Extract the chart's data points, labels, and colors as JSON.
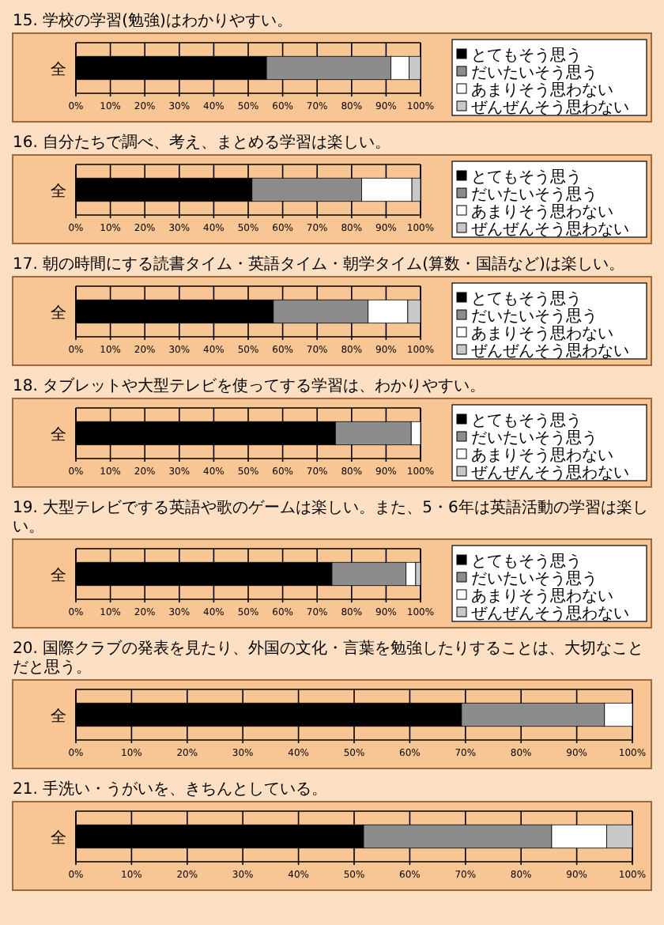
{
  "chart_data": [
    {
      "type": "bar",
      "title": "15. 学校の学習(勉強)はわかりやすい。",
      "orientation": "horizontal",
      "stacked": true,
      "categories": [
        "全"
      ],
      "xlim": [
        0,
        100
      ],
      "xticks": [
        {
          "value": 0,
          "label": "0%"
        },
        {
          "value": 10,
          "label": "10%"
        },
        {
          "value": 20,
          "label": "20%"
        },
        {
          "value": 30,
          "label": "30%"
        },
        {
          "value": 40,
          "label": "40%"
        },
        {
          "value": 50,
          "label": "50%"
        },
        {
          "value": 60,
          "label": "60%"
        },
        {
          "value": 70,
          "label": "70%"
        },
        {
          "value": 80,
          "label": "80%"
        },
        {
          "value": 90,
          "label": "90%"
        },
        {
          "value": 100,
          "label": "100%"
        }
      ],
      "grid": "x",
      "legend": "right",
      "series": [
        {
          "name": "とてもそう思う",
          "color": "#000000",
          "values": [
            55.3
          ]
        },
        {
          "name": "だいたいそう思う",
          "color": "#8c8c8c",
          "values": [
            36.1
          ]
        },
        {
          "name": "あまりそう思わない",
          "color": "#ffffff",
          "values": [
            5.3
          ]
        },
        {
          "name": "ぜんぜんそう思わない",
          "color": "#c8c8c8",
          "values": [
            3.3
          ]
        }
      ]
    },
    {
      "type": "bar",
      "title": "16. 自分たちで調べ、考え、まとめる学習は楽しい。",
      "orientation": "horizontal",
      "stacked": true,
      "categories": [
        "全"
      ],
      "xlim": [
        0,
        100
      ],
      "xticks": [
        {
          "value": 0,
          "label": "0%"
        },
        {
          "value": 10,
          "label": "10%"
        },
        {
          "value": 20,
          "label": "20%"
        },
        {
          "value": 30,
          "label": "30%"
        },
        {
          "value": 40,
          "label": "40%"
        },
        {
          "value": 50,
          "label": "50%"
        },
        {
          "value": 60,
          "label": "60%"
        },
        {
          "value": 70,
          "label": "70%"
        },
        {
          "value": 80,
          "label": "80%"
        },
        {
          "value": 90,
          "label": "90%"
        },
        {
          "value": 100,
          "label": "100%"
        }
      ],
      "grid": "x",
      "legend": "right",
      "series": [
        {
          "name": "とてもそう思う",
          "color": "#000000",
          "values": [
            51.1
          ]
        },
        {
          "name": "だいたいそう思う",
          "color": "#8c8c8c",
          "values": [
            31.8
          ]
        },
        {
          "name": "あまりそう思わない",
          "color": "#ffffff",
          "values": [
            14.6
          ]
        },
        {
          "name": "ぜんぜんそう思わない",
          "color": "#c8c8c8",
          "values": [
            2.5
          ]
        }
      ]
    },
    {
      "type": "bar",
      "title": "17. 朝の時間にする読書タイム・英語タイム・朝学タイム(算数・国語など)は楽しい。",
      "orientation": "horizontal",
      "stacked": true,
      "categories": [
        "全"
      ],
      "xlim": [
        0,
        100
      ],
      "xticks": [
        {
          "value": 0,
          "label": "0%"
        },
        {
          "value": 10,
          "label": "10%"
        },
        {
          "value": 20,
          "label": "20%"
        },
        {
          "value": 30,
          "label": "30%"
        },
        {
          "value": 40,
          "label": "40%"
        },
        {
          "value": 50,
          "label": "50%"
        },
        {
          "value": 60,
          "label": "60%"
        },
        {
          "value": 70,
          "label": "70%"
        },
        {
          "value": 80,
          "label": "80%"
        },
        {
          "value": 90,
          "label": "90%"
        },
        {
          "value": 100,
          "label": "100%"
        }
      ],
      "grid": "x",
      "legend": "right",
      "series": [
        {
          "name": "とてもそう思う",
          "color": "#000000",
          "values": [
            57.3
          ]
        },
        {
          "name": "だいたいそう思う",
          "color": "#8c8c8c",
          "values": [
            27.5
          ]
        },
        {
          "name": "あまりそう思わない",
          "color": "#ffffff",
          "values": [
            11.5
          ]
        },
        {
          "name": "ぜんぜんそう思わない",
          "color": "#c8c8c8",
          "values": [
            3.7
          ]
        }
      ]
    },
    {
      "type": "bar",
      "title": "18. タブレットや大型テレビを使ってする学習は、わかりやすい。",
      "orientation": "horizontal",
      "stacked": true,
      "categories": [
        "全"
      ],
      "xlim": [
        0,
        100
      ],
      "xticks": [
        {
          "value": 0,
          "label": "0%"
        },
        {
          "value": 10,
          "label": "10%"
        },
        {
          "value": 20,
          "label": "20%"
        },
        {
          "value": 30,
          "label": "30%"
        },
        {
          "value": 40,
          "label": "40%"
        },
        {
          "value": 50,
          "label": "50%"
        },
        {
          "value": 60,
          "label": "60%"
        },
        {
          "value": 70,
          "label": "70%"
        },
        {
          "value": 80,
          "label": "80%"
        },
        {
          "value": 90,
          "label": "90%"
        },
        {
          "value": 100,
          "label": "100%"
        }
      ],
      "grid": "x",
      "legend": "right",
      "series": [
        {
          "name": "とてもそう思う",
          "color": "#000000",
          "values": [
            75.3
          ]
        },
        {
          "name": "だいたいそう思う",
          "color": "#8c8c8c",
          "values": [
            22.0
          ]
        },
        {
          "name": "あまりそう思わない",
          "color": "#ffffff",
          "values": [
            2.7
          ]
        },
        {
          "name": "ぜんぜんそう思わない",
          "color": "#c8c8c8",
          "values": [
            0
          ]
        }
      ]
    },
    {
      "type": "bar",
      "title": "19. 大型テレビでする英語や歌のゲームは楽しい。また、5・6年は英語活動の学習は楽しい。",
      "orientation": "horizontal",
      "stacked": true,
      "categories": [
        "全"
      ],
      "xlim": [
        0,
        100
      ],
      "xticks": [
        {
          "value": 0,
          "label": "0%"
        },
        {
          "value": 10,
          "label": "10%"
        },
        {
          "value": 20,
          "label": "20%"
        },
        {
          "value": 30,
          "label": "30%"
        },
        {
          "value": 40,
          "label": "40%"
        },
        {
          "value": 50,
          "label": "50%"
        },
        {
          "value": 60,
          "label": "60%"
        },
        {
          "value": 70,
          "label": "70%"
        },
        {
          "value": 80,
          "label": "80%"
        },
        {
          "value": 90,
          "label": "90%"
        },
        {
          "value": 100,
          "label": "100%"
        }
      ],
      "grid": "x",
      "legend": "right",
      "series": [
        {
          "name": "とてもそう思う",
          "color": "#000000",
          "values": [
            74.3
          ]
        },
        {
          "name": "だいたいそう思う",
          "color": "#8c8c8c",
          "values": [
            21.5
          ]
        },
        {
          "name": "あまりそう思わない",
          "color": "#ffffff",
          "values": [
            2.8
          ]
        },
        {
          "name": "ぜんぜんそう思わない",
          "color": "#c8c8c8",
          "values": [
            1.4
          ]
        }
      ]
    },
    {
      "type": "bar",
      "title": "20. 国際クラブの発表を見たり、外国の文化・言葉を勉強したりすることは、大切なことだと思う。",
      "orientation": "horizontal",
      "stacked": true,
      "categories": [
        "全"
      ],
      "xlim": [
        0,
        100
      ],
      "xticks": [
        {
          "value": 0,
          "label": "0%"
        },
        {
          "value": 10,
          "label": "10%"
        },
        {
          "value": 20,
          "label": "20%"
        },
        {
          "value": 30,
          "label": "30%"
        },
        {
          "value": 40,
          "label": "40%"
        },
        {
          "value": 50,
          "label": "50%"
        },
        {
          "value": 60,
          "label": "60%"
        },
        {
          "value": 70,
          "label": "70%"
        },
        {
          "value": 80,
          "label": "80%"
        },
        {
          "value": 90,
          "label": "90%"
        },
        {
          "value": 100,
          "label": "100%"
        }
      ],
      "grid": "x",
      "series": [
        {
          "color": "#000000",
          "values": [
            69.3
          ]
        },
        {
          "color": "#8c8c8c",
          "values": [
            25.7
          ]
        },
        {
          "color": "#ffffff",
          "values": [
            5.0
          ]
        },
        {
          "color": "#c8c8c8",
          "values": [
            0
          ]
        }
      ]
    },
    {
      "type": "bar",
      "title": "21. 手洗い・うがいを、きちんとしている。",
      "orientation": "horizontal",
      "stacked": true,
      "categories": [
        "全"
      ],
      "xlim": [
        0,
        100
      ],
      "xticks": [
        {
          "value": 0,
          "label": "0%"
        },
        {
          "value": 10,
          "label": "10%"
        },
        {
          "value": 20,
          "label": "20%"
        },
        {
          "value": 30,
          "label": "30%"
        },
        {
          "value": 40,
          "label": "40%"
        },
        {
          "value": 50,
          "label": "50%"
        },
        {
          "value": 60,
          "label": "60%"
        },
        {
          "value": 70,
          "label": "70%"
        },
        {
          "value": 80,
          "label": "80%"
        },
        {
          "value": 90,
          "label": "90%"
        },
        {
          "value": 100,
          "label": "100%"
        }
      ],
      "grid": "x",
      "series": [
        {
          "color": "#000000",
          "values": [
            51.7
          ]
        },
        {
          "color": "#8c8c8c",
          "values": [
            33.8
          ]
        },
        {
          "color": "#ffffff",
          "values": [
            9.9
          ]
        },
        {
          "color": "#c8c8c8",
          "values": [
            4.6
          ]
        }
      ]
    }
  ]
}
